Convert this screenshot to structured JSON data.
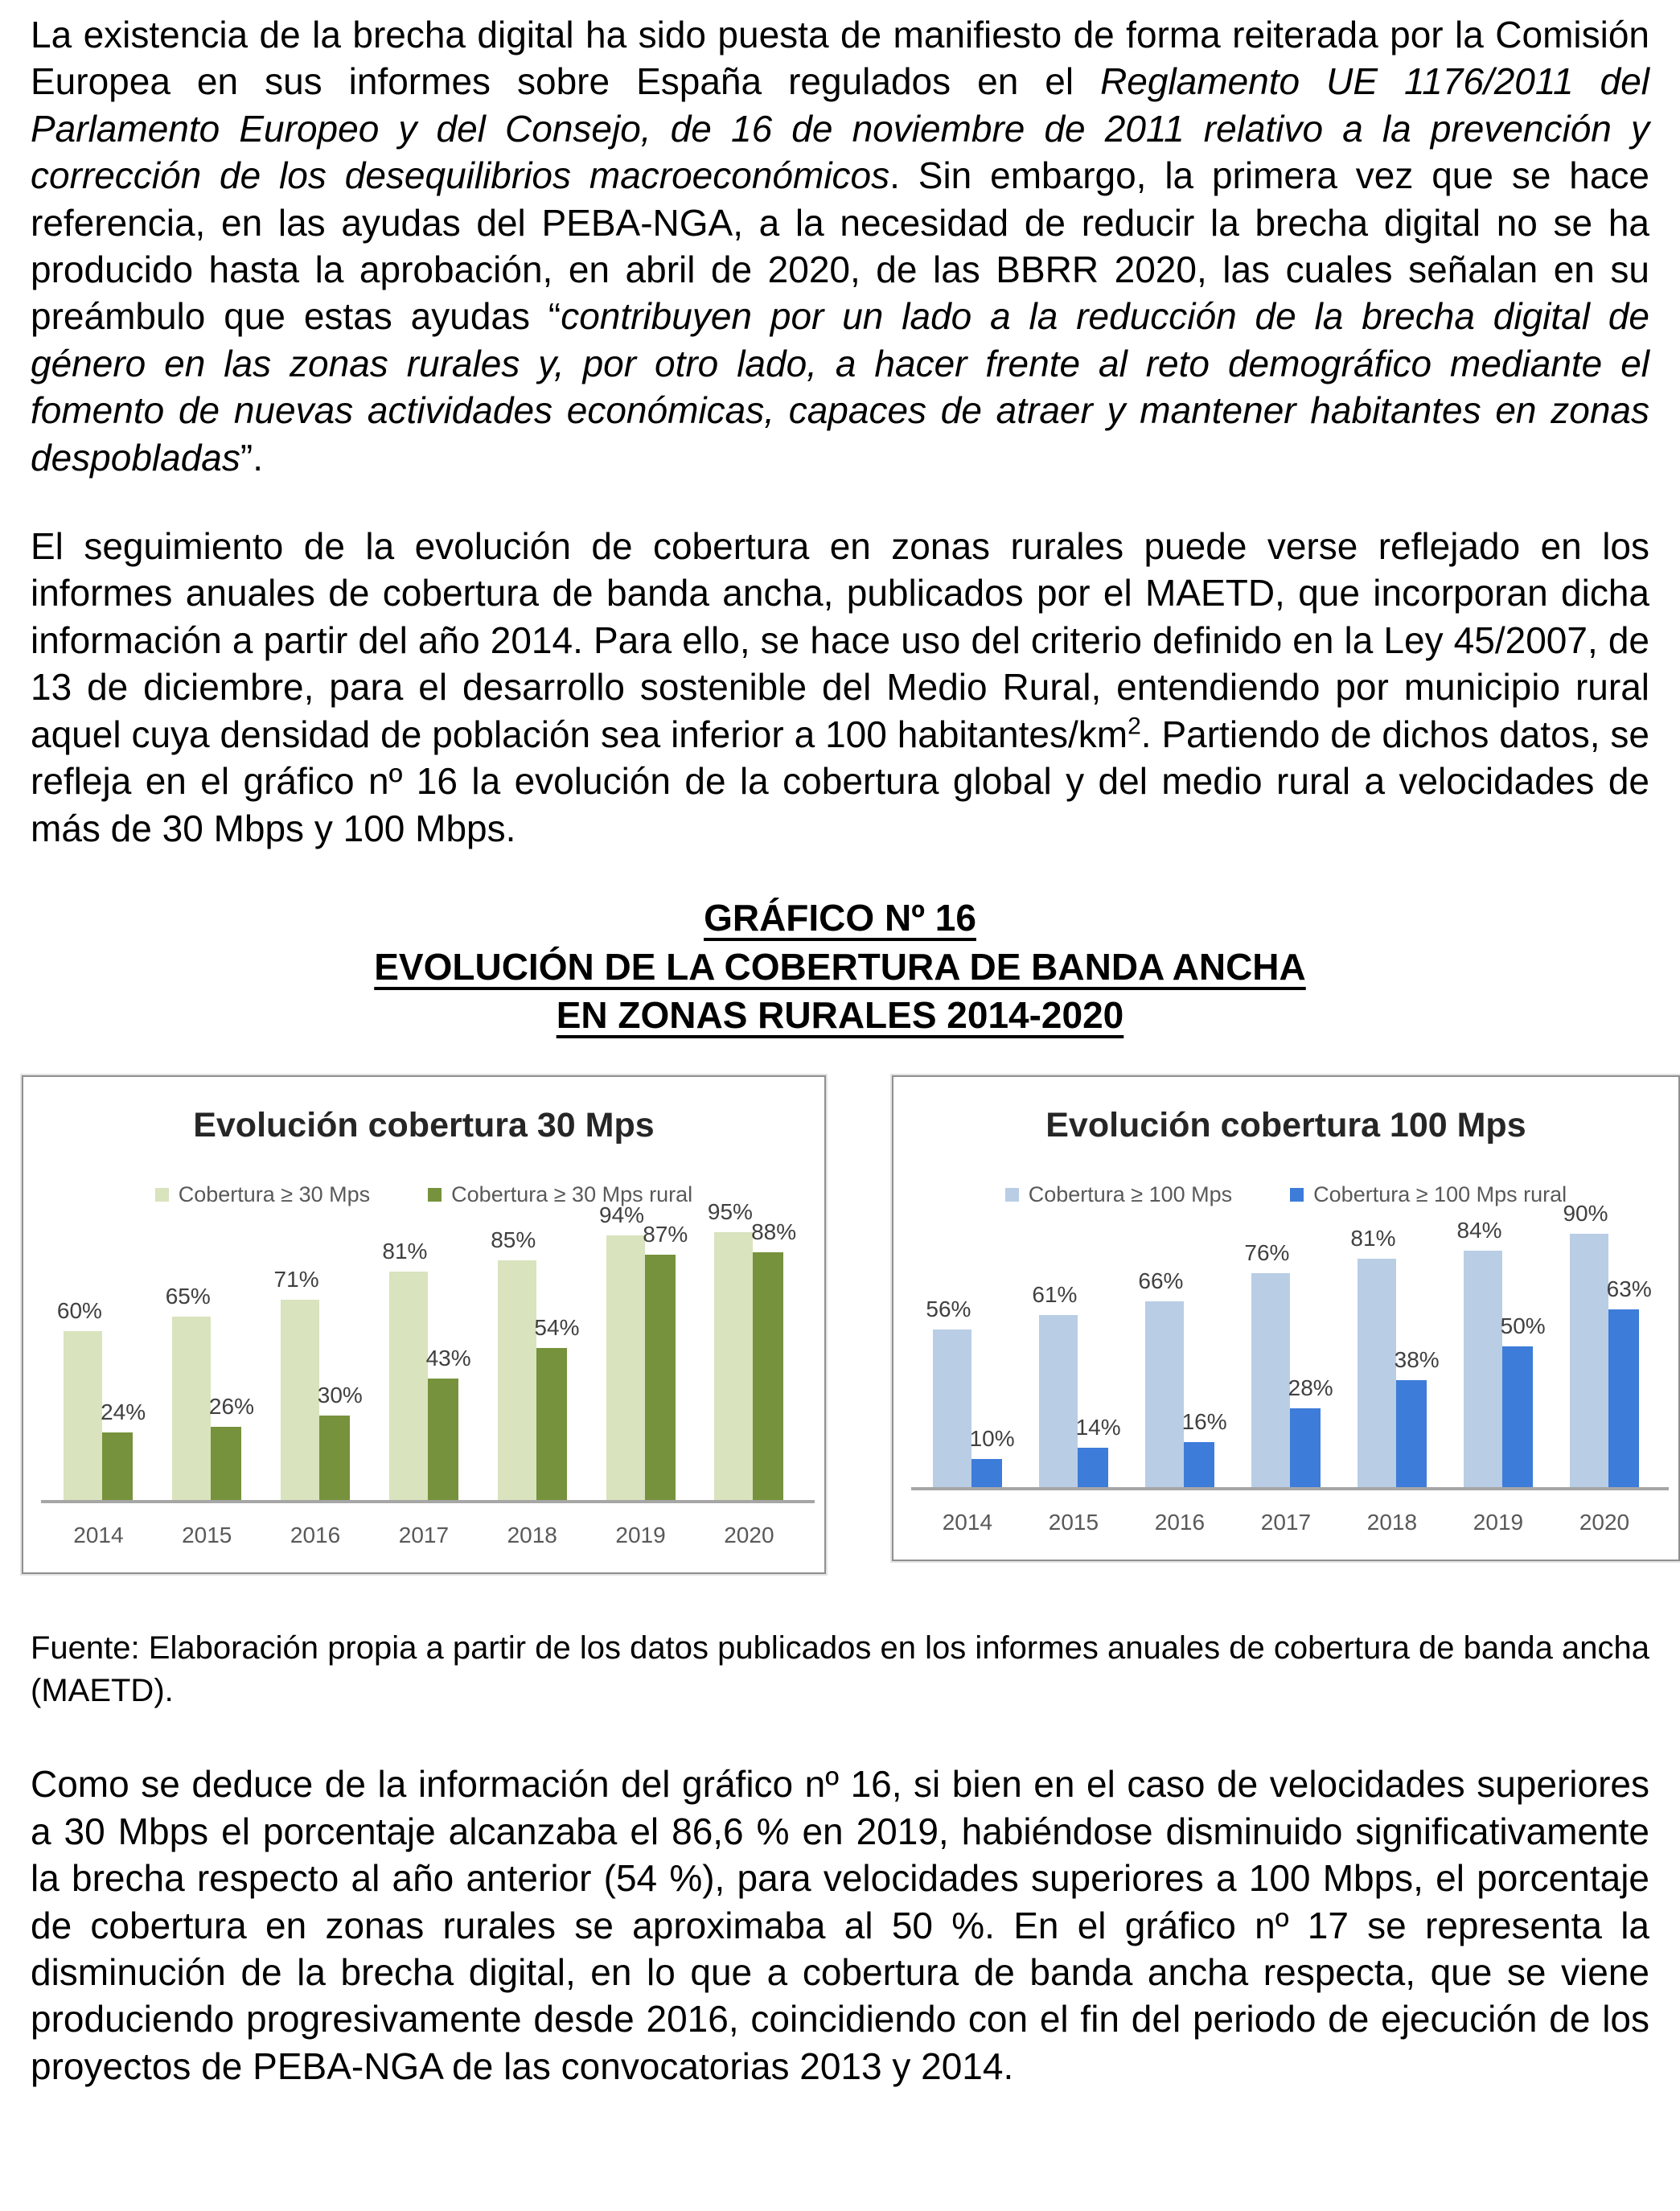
{
  "document": {
    "paragraph1": {
      "runs": [
        {
          "text": "La existencia de la brecha digital ha sido puesta de manifiesto de forma reiterada por la Comisión Europea en sus informes sobre España regulados en el "
        },
        {
          "text": "Reglamento UE 1176/2011 del Parlamento Europeo y del Consejo, de 16 de noviembre de 2011 relativo a la prevención y corrección de los desequilibrios macroeconómicos",
          "italic": true
        },
        {
          "text": ". Sin embargo, la primera vez que se hace referencia, en las ayudas del PEBA-NGA, a la necesidad de reducir la brecha digital no se ha producido hasta la aprobación, en abril de 2020, de las BBRR 2020, las cuales señalan en su preámbulo que estas ayudas “"
        },
        {
          "text": "contribuyen por un lado a la reducción de la brecha digital de género en las zonas rurales y, por otro lado, a hacer frente al reto demográfico mediante el fomento de nuevas actividades económicas, capaces de atraer y mantener habitantes en zonas despobladas",
          "italic": true
        },
        {
          "text": "”."
        }
      ]
    },
    "paragraph2": {
      "runs": [
        {
          "text": "El seguimiento de la evolución de cobertura en zonas rurales puede verse reflejado en los informes anuales de cobertura de banda ancha, publicados por el MAETD, que incorporan dicha información a partir del año 2014. Para ello, se hace uso del criterio definido en la Ley 45/2007, de 13 de diciembre, para el desarrollo sostenible del Medio Rural, entendiendo por municipio rural aquel cuya densidad de población sea inferior a 100 habitantes/km"
        },
        {
          "text": "2",
          "sup": true
        },
        {
          "text": ". Partiendo de dichos datos, se refleja en el gráfico nº 16 la evolución de la cobertura global y del medio rural a velocidades de más de 30 Mbps y 100 Mbps."
        }
      ]
    },
    "heading": {
      "line1": "GRÁFICO Nº 16",
      "line2": "EVOLUCIÓN DE LA COBERTURA DE BANDA ANCHA",
      "line3": "EN ZONAS RURALES 2014-2020"
    },
    "source_note": "Fuente: Elaboración propia a partir de los datos publicados en los informes anuales de cobertura de banda ancha (MAETD).",
    "paragraph3": "Como se deduce de la información del gráfico nº 16, si bien en el caso de velocidades superiores a 30 Mbps el porcentaje alcanzaba el 86,6 % en 2019, habiéndose disminuido significativamente la brecha respecto al año anterior (54 %), para velocidades superiores a 100 Mbps, el porcentaje de cobertura en zonas rurales se aproximaba al 50 %. En el gráfico nº 17 se representa la disminución de la brecha digital, en lo que a cobertura de banda ancha respecta, que se viene produciendo progresivamente desde 2016, coincidiendo con el fin del periodo de ejecución de los proyectos de PEBA-NGA de las convocatorias 2013 y 2014."
  },
  "chart_data": [
    {
      "type": "bar",
      "title": "Evolución cobertura 30 Mps",
      "categories": [
        "2014",
        "2015",
        "2016",
        "2017",
        "2018",
        "2019",
        "2020"
      ],
      "series": [
        {
          "name": "Cobertura ≥ 30 Mps",
          "color": "#d9e3bd",
          "values": [
            60,
            65,
            71,
            81,
            85,
            94,
            95
          ]
        },
        {
          "name": "Cobertura ≥ 30 Mps rural",
          "color": "#76923c",
          "values": [
            24,
            26,
            30,
            43,
            54,
            87,
            88
          ]
        }
      ],
      "value_suffix": "%",
      "ylim": [
        0,
        100
      ],
      "grid": false,
      "legend_position": "top",
      "axis_color": "#a6a6a6",
      "label_color": "#404040"
    },
    {
      "type": "bar",
      "title": "Evolución cobertura 100 Mps",
      "categories": [
        "2014",
        "2015",
        "2016",
        "2017",
        "2018",
        "2019",
        "2020"
      ],
      "series": [
        {
          "name": "Cobertura ≥ 100 Mps",
          "color": "#b9cde5",
          "values": [
            56,
            61,
            66,
            76,
            81,
            84,
            90
          ]
        },
        {
          "name": "Cobertura ≥ 100 Mps rural",
          "color": "#3d7cd9",
          "values": [
            10,
            14,
            16,
            28,
            38,
            50,
            63
          ]
        }
      ],
      "value_suffix": "%",
      "ylim": [
        0,
        100
      ],
      "grid": false,
      "legend_position": "top",
      "axis_color": "#a6a6a6",
      "label_color": "#404040"
    }
  ]
}
